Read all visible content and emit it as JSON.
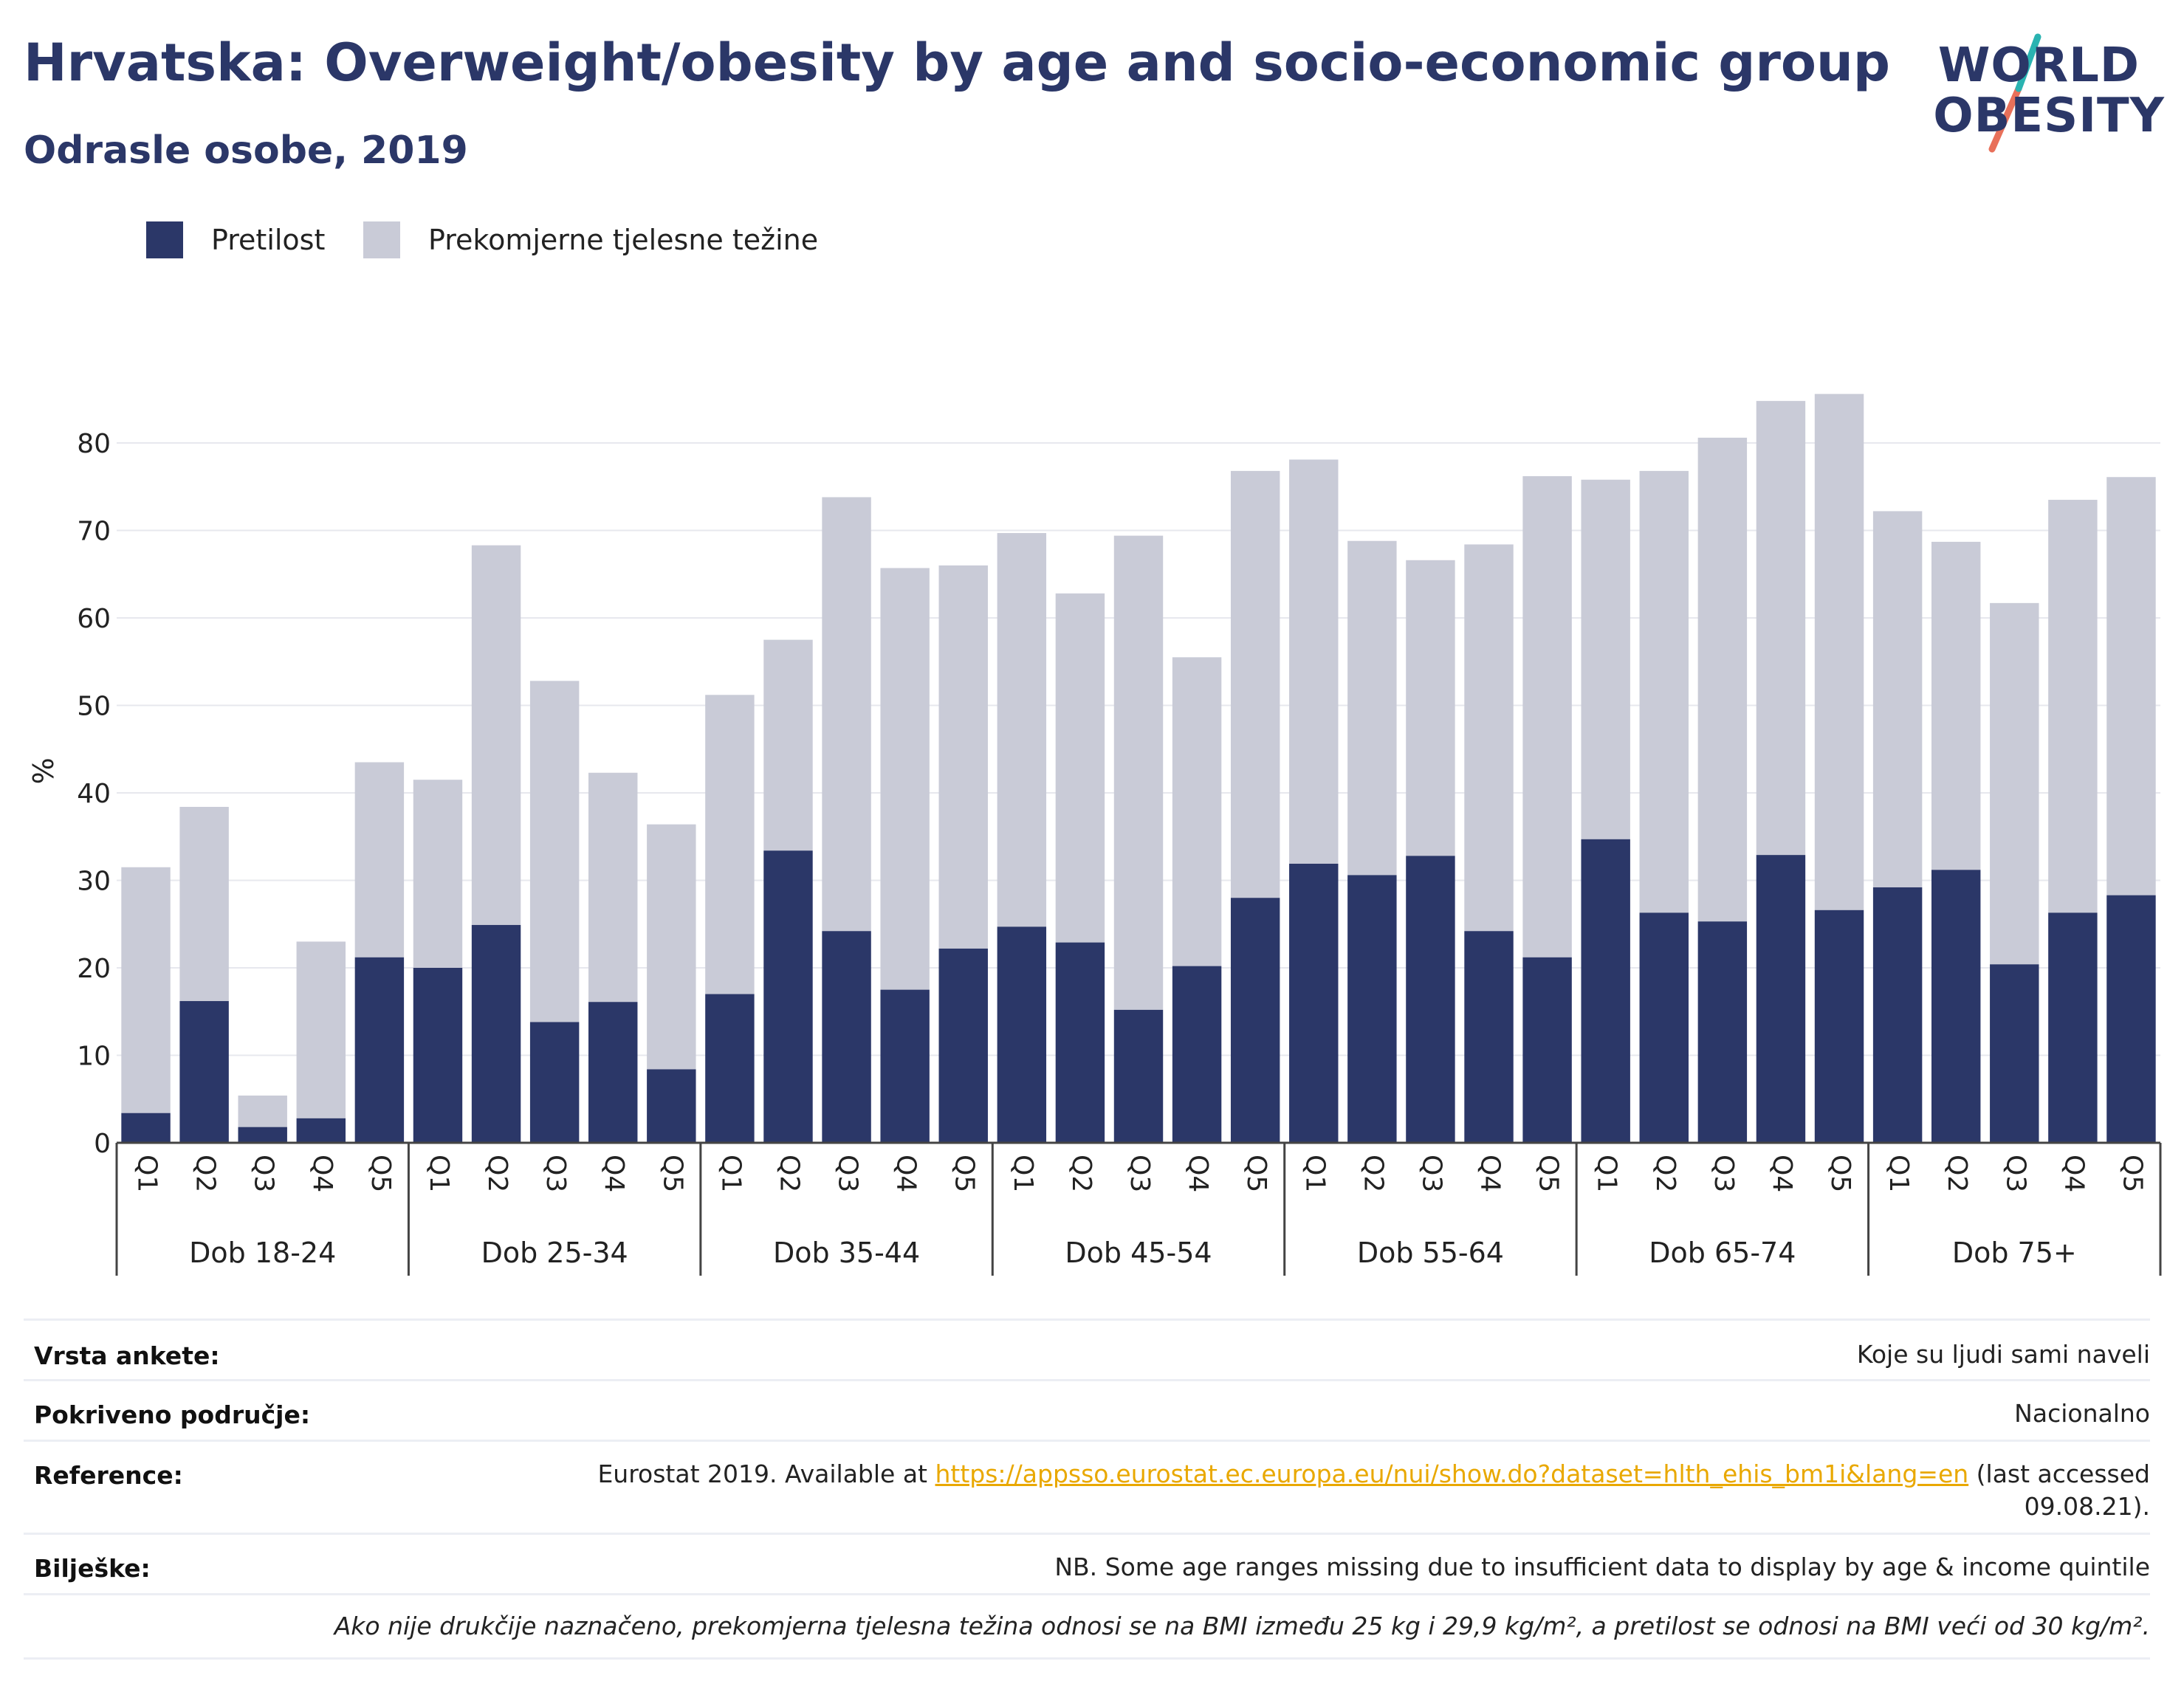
{
  "header": {
    "title": "Hrvatska: Overweight/obesity by age and socio-economic group",
    "subtitle": "Odrasle osobe, 2019"
  },
  "logo": {
    "line1": "WORLD",
    "line2": "OBESITY",
    "icon": "world-obesity-slash-icon",
    "colors": {
      "text": "#2b3768",
      "teal": "#2ab3b1",
      "coral": "#e8705a"
    }
  },
  "legend": [
    {
      "label": "Pretilost",
      "color": "#2b3768"
    },
    {
      "label": "Prekomjerne tjelesne težine",
      "color": "#c9cbd7"
    }
  ],
  "chart_data": {
    "type": "bar",
    "stacked": true,
    "ylabel": "%",
    "ylim": [
      0,
      85
    ],
    "yticks": [
      0,
      10,
      20,
      30,
      40,
      50,
      60,
      70,
      80
    ],
    "grid": true,
    "legend_position": "top-left",
    "groups": [
      "Dob 18-24",
      "Dob 25-34",
      "Dob 35-44",
      "Dob 45-54",
      "Dob 55-64",
      "Dob 65-74",
      "Dob 75+"
    ],
    "categories": [
      "Q1",
      "Q2",
      "Q3",
      "Q4",
      "Q5"
    ],
    "series": [
      {
        "name": "Pretilost",
        "color": "#2b3768",
        "values": [
          [
            3.4,
            16.2,
            1.8,
            2.8,
            21.2
          ],
          [
            20.0,
            24.9,
            13.8,
            16.1,
            8.4
          ],
          [
            17.0,
            33.4,
            24.2,
            17.5,
            22.2
          ],
          [
            24.7,
            22.9,
            15.2,
            20.2,
            28.0
          ],
          [
            31.9,
            30.6,
            32.8,
            24.2,
            21.2
          ],
          [
            34.7,
            26.3,
            25.3,
            32.9,
            26.6
          ],
          [
            29.2,
            31.2,
            20.4,
            26.3,
            28.3
          ]
        ]
      },
      {
        "name": "Prekomjerne tjelesne težine",
        "color": "#c9cbd7",
        "values": [
          [
            28.1,
            22.2,
            3.6,
            20.2,
            22.3
          ],
          [
            21.5,
            43.4,
            39.0,
            26.2,
            28.0
          ],
          [
            34.2,
            24.1,
            49.6,
            48.2,
            43.8
          ],
          [
            45.0,
            39.9,
            54.2,
            35.3,
            48.8
          ],
          [
            46.2,
            38.2,
            33.8,
            44.2,
            55.0
          ],
          [
            41.1,
            50.5,
            55.3,
            51.9,
            59.0
          ],
          [
            43.0,
            37.5,
            41.3,
            47.2,
            47.8
          ]
        ]
      }
    ]
  },
  "footer": {
    "survey_type_label": "Vrsta ankete:",
    "survey_type_value": "Koje su ljudi sami naveli",
    "coverage_label": "Pokriveno područje:",
    "coverage_value": "Nacionalno",
    "reference_label": "Reference:",
    "reference_prefix": "Eurostat 2019. Available at ",
    "reference_link": "https://appsso.eurostat.ec.europa.eu/nui/show.do?dataset=hlth_ehis_bm1i&lang=en",
    "reference_suffix_1": " (last accessed",
    "reference_suffix_2": "09.08.21).",
    "notes_label": "Bilješke:",
    "notes_value": "NB. Some age ranges missing due to insufficient data to display by age & income quintile",
    "definition_note": "Ako nije drukčije naznačeno, prekomjerna tjelesna težina odnosi se na BMI između 25 kg i 29,9 kg/m², a pretilost se odnosi na BMI veći od 30 kg/m²."
  }
}
